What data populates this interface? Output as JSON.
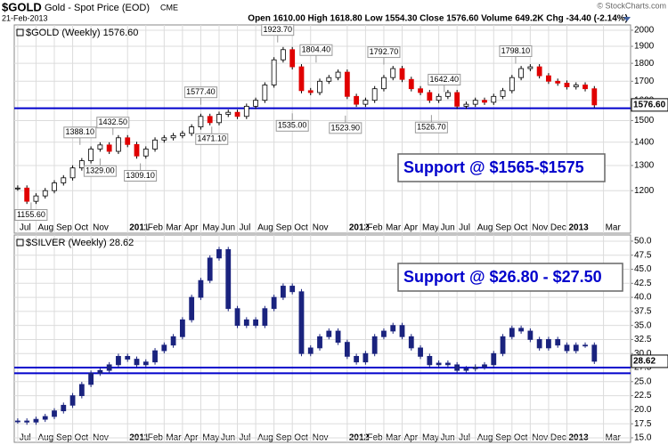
{
  "header": {
    "symbol": "$GOLD",
    "name": "Gold - Spot Price (EOD)",
    "exchange": "CME",
    "date": "21-Feb-2013",
    "quote": "Open 1610.00 High 1618.80 Low 1554.30 Close 1576.60 Volume 649.2K Chg -34.40 (-2.14%)",
    "credit": "© StockCharts.com"
  },
  "chart_data": [
    {
      "type": "candlestick",
      "legend_label": "$GOLD (Weekly) 1576.60",
      "last_label": "1576.60",
      "log": true,
      "grid": true,
      "up_color": "#ffffff",
      "down_color": "#e00000",
      "line_color": "#000000",
      "support_color": "#0000cc",
      "callout": "Support @ $1565-$1575",
      "x": [
        0,
        0.5,
        1,
        1.5,
        2,
        2.5,
        3,
        3.5,
        4,
        4.5,
        5,
        5.5,
        6,
        6.5,
        7,
        7.5,
        8,
        8.5,
        9,
        9.5,
        10,
        10.5,
        11,
        11.5,
        12,
        12.5,
        13,
        13.5,
        14,
        14.5,
        15,
        15.5,
        16,
        16.5,
        17,
        17.5,
        18,
        18.5,
        19,
        19.5,
        20,
        20.5,
        21,
        21.5,
        22,
        22.5,
        23,
        23.5,
        24,
        24.5,
        25,
        25.5,
        26,
        26.5,
        27,
        27.5,
        28,
        28.5,
        29,
        29.5,
        30,
        30.5,
        31,
        31.5
      ],
      "values": [
        1210,
        1160,
        1180,
        1200,
        1230,
        1250,
        1290,
        1320,
        1370,
        1388,
        1360,
        1420,
        1390,
        1340,
        1370,
        1410,
        1420,
        1430,
        1440,
        1470,
        1520,
        1490,
        1530,
        1540,
        1520,
        1570,
        1600,
        1680,
        1820,
        1880,
        1780,
        1650,
        1640,
        1700,
        1720,
        1750,
        1620,
        1580,
        1600,
        1660,
        1720,
        1770,
        1710,
        1660,
        1640,
        1600,
        1620,
        1640,
        1570,
        1580,
        1600,
        1590,
        1620,
        1650,
        1720,
        1770,
        1780,
        1730,
        1700,
        1690,
        1670,
        1680,
        1660,
        1576.6
      ],
      "high_labels": [
        {
          "x": 3.4,
          "value": 1388.1,
          "label": "1388.10"
        },
        {
          "x": 5.2,
          "value": 1432.5,
          "label": "1432.50"
        },
        {
          "x": 10.0,
          "value": 1577.4,
          "label": "1577.40"
        },
        {
          "x": 14.2,
          "value": 1923.7,
          "label": "1923.70"
        },
        {
          "x": 16.3,
          "value": 1804.4,
          "label": "1804.40"
        },
        {
          "x": 20.0,
          "value": 1792.7,
          "label": "1792.70"
        },
        {
          "x": 23.3,
          "value": 1642.4,
          "label": "1642.40"
        },
        {
          "x": 27.2,
          "value": 1798.1,
          "label": "1798.10"
        }
      ],
      "low_labels": [
        {
          "x": 0.73,
          "value": 1155.6,
          "label": "1155.60"
        },
        {
          "x": 4.5,
          "value": 1329.0,
          "label": "1329.00"
        },
        {
          "x": 6.7,
          "value": 1309.1,
          "label": "1309.10"
        },
        {
          "x": 10.6,
          "value": 1471.1,
          "label": "1471.10"
        },
        {
          "x": 15.0,
          "value": 1535.0,
          "label": "1535.00"
        },
        {
          "x": 17.9,
          "value": 1523.9,
          "label": "1523.90"
        },
        {
          "x": 22.6,
          "value": 1526.7,
          "label": "1526.70"
        }
      ],
      "support_lines": [
        1560
      ],
      "ylim": [
        1048,
        2034
      ],
      "yticks": [
        1200,
        1300,
        1400,
        1500,
        1600,
        1700,
        1800,
        1900,
        2000
      ],
      "xlim": [
        -0.19,
        33.48
      ],
      "xticks": [
        {
          "value": 0,
          "label": "Jul"
        },
        {
          "value": 1,
          "label": "Aug"
        },
        {
          "value": 2,
          "label": "Sep"
        },
        {
          "value": 3,
          "label": "Oct"
        },
        {
          "value": 4,
          "label": "Nov"
        },
        {
          "value": 6,
          "label": "2011"
        },
        {
          "value": 7,
          "label": "Feb"
        },
        {
          "value": 8,
          "label": "Mar"
        },
        {
          "value": 9,
          "label": "Apr"
        },
        {
          "value": 10,
          "label": "May"
        },
        {
          "value": 11,
          "label": "Jun"
        },
        {
          "value": 12,
          "label": "Jul"
        },
        {
          "value": 13,
          "label": "Aug"
        },
        {
          "value": 14,
          "label": "Sep"
        },
        {
          "value": 15,
          "label": "Oct"
        },
        {
          "value": 16,
          "label": "Nov"
        },
        {
          "value": 18,
          "label": "2012"
        },
        {
          "value": 19,
          "label": "Feb"
        },
        {
          "value": 20,
          "label": "Mar"
        },
        {
          "value": 21,
          "label": "Apr"
        },
        {
          "value": 22,
          "label": "May"
        },
        {
          "value": 23,
          "label": "Jun"
        },
        {
          "value": 24,
          "label": "Jul"
        },
        {
          "value": 25,
          "label": "Aug"
        },
        {
          "value": 26,
          "label": "Sep"
        },
        {
          "value": 27,
          "label": "Oct"
        },
        {
          "value": 28,
          "label": "Nov"
        },
        {
          "value": 29,
          "label": "Dec"
        },
        {
          "value": 30,
          "label": "2013"
        },
        {
          "value": 32,
          "label": "Mar"
        }
      ]
    },
    {
      "type": "candlestick",
      "legend_label": "$SILVER (Weekly) 28.62",
      "last_label": "28.62",
      "log": false,
      "grid": true,
      "up_color": "#1a237e",
      "down_color": "#1a237e",
      "line_color": "#1a237e",
      "support_color": "#0000cc",
      "callout": "Support @ $26.80 - $27.50",
      "x": [
        0,
        0.5,
        1,
        1.5,
        2,
        2.5,
        3,
        3.5,
        4,
        4.5,
        5,
        5.5,
        6,
        6.5,
        7,
        7.5,
        8,
        8.5,
        9,
        9.5,
        10,
        10.5,
        11,
        11.5,
        12,
        12.5,
        13,
        13.5,
        14,
        14.5,
        15,
        15.5,
        16,
        16.5,
        17,
        17.5,
        18,
        18.5,
        19,
        19.5,
        20,
        20.5,
        21,
        21.5,
        22,
        22.5,
        23,
        23.5,
        24,
        24.5,
        25,
        25.5,
        26,
        26.5,
        27,
        27.5,
        28,
        28.5,
        29,
        29.5,
        30,
        30.5,
        31,
        31.5
      ],
      "values": [
        18.0,
        17.8,
        18.3,
        18.8,
        19.8,
        20.8,
        22.5,
        24.5,
        26.5,
        27.0,
        28.0,
        29.5,
        29.0,
        28.0,
        28.5,
        30.5,
        31.5,
        33.0,
        36.0,
        40.0,
        43.0,
        47.0,
        48.5,
        38.0,
        35.0,
        36.0,
        35.0,
        38.0,
        40.0,
        42.0,
        41.0,
        30.0,
        31.0,
        33.0,
        34.0,
        32.0,
        29.5,
        28.5,
        30.0,
        33.0,
        34.0,
        35.0,
        33.0,
        31.0,
        29.5,
        28.0,
        28.3,
        28.0,
        27.0,
        27.3,
        27.6,
        28.0,
        30.0,
        33.0,
        34.5,
        34.0,
        32.5,
        31.0,
        32.5,
        31.5,
        30.5,
        31.5,
        31.5,
        28.62
      ],
      "support_lines": [
        27.5,
        26.5
      ],
      "ylim": [
        14.2,
        51.1
      ],
      "yticks": [
        {
          "value": 15,
          "label": "15.0"
        },
        {
          "value": 17.5,
          "label": "17.5"
        },
        {
          "value": 20,
          "label": "20.0"
        },
        {
          "value": 22.5,
          "label": "22.5"
        },
        {
          "value": 25,
          "label": "25.0"
        },
        {
          "value": 27.5,
          "label": "27.5"
        },
        {
          "value": 30,
          "label": "30.0"
        },
        {
          "value": 32.5,
          "label": "32.5"
        },
        {
          "value": 35,
          "label": "35.0"
        },
        {
          "value": 37.5,
          "label": "37.5"
        },
        {
          "value": 40,
          "label": "40.0"
        },
        {
          "value": 42.5,
          "label": "42.5"
        },
        {
          "value": 45,
          "label": "45.0"
        },
        {
          "value": 47.5,
          "label": "47.5"
        },
        {
          "value": 50,
          "label": "50.0"
        }
      ],
      "xlim": [
        -0.19,
        33.48
      ],
      "xticks": [
        {
          "value": 0,
          "label": "Jul"
        },
        {
          "value": 1,
          "label": "Aug"
        },
        {
          "value": 2,
          "label": "Sep"
        },
        {
          "value": 3,
          "label": "Oct"
        },
        {
          "value": 4,
          "label": "Nov"
        },
        {
          "value": 6,
          "label": "2011"
        },
        {
          "value": 7,
          "label": "Feb"
        },
        {
          "value": 8,
          "label": "Mar"
        },
        {
          "value": 9,
          "label": "Apr"
        },
        {
          "value": 10,
          "label": "May"
        },
        {
          "value": 11,
          "label": "Jun"
        },
        {
          "value": 12,
          "label": "Jul"
        },
        {
          "value": 13,
          "label": "Aug"
        },
        {
          "value": 14,
          "label": "Sep"
        },
        {
          "value": 15,
          "label": "Oct"
        },
        {
          "value": 16,
          "label": "Nov"
        },
        {
          "value": 18,
          "label": "2012"
        },
        {
          "value": 19,
          "label": "Feb"
        },
        {
          "value": 20,
          "label": "Mar"
        },
        {
          "value": 21,
          "label": "Apr"
        },
        {
          "value": 22,
          "label": "May"
        },
        {
          "value": 23,
          "label": "Jun"
        },
        {
          "value": 24,
          "label": "Jul"
        },
        {
          "value": 25,
          "label": "Aug"
        },
        {
          "value": 26,
          "label": "Sep"
        },
        {
          "value": 27,
          "label": "Oct"
        },
        {
          "value": 28,
          "label": "Nov"
        },
        {
          "value": 29,
          "label": "Dec"
        },
        {
          "value": 30,
          "label": "2013"
        },
        {
          "value": 32,
          "label": "Mar"
        }
      ]
    }
  ]
}
